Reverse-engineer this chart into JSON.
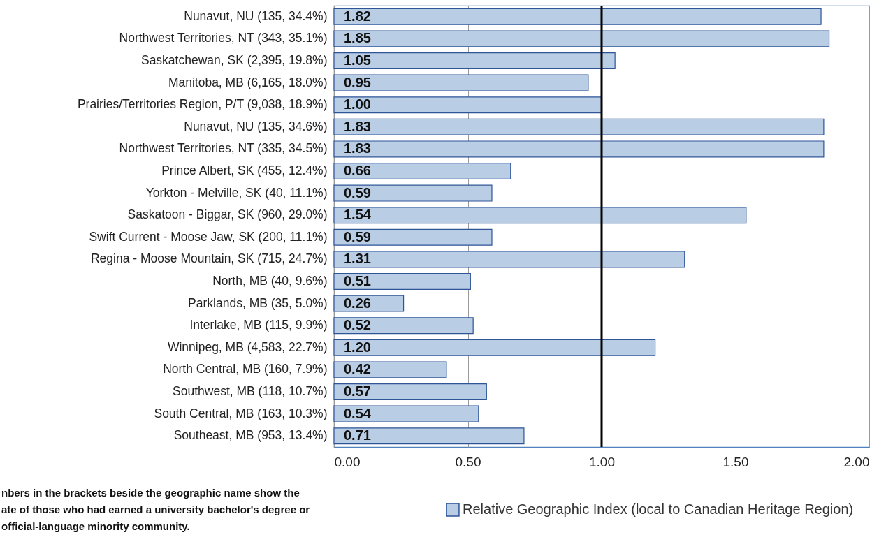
{
  "chart_data": {
    "type": "bar",
    "orientation": "horizontal",
    "categories": [
      "Nunavut, NU (135, 34.4%)",
      "Northwest Territories, NT (343, 35.1%)",
      "Saskatchewan, SK (2,395, 19.8%)",
      "Manitoba, MB (6,165, 18.0%)",
      "Prairies/Territories Region, P/T (9,038, 18.9%)",
      "Nunavut, NU (135, 34.6%)",
      "Northwest Territories, NT (335, 34.5%)",
      "Prince Albert, SK (455, 12.4%)",
      "Yorkton - Melville, SK (40, 11.1%)",
      "Saskatoon - Biggar, SK (960, 29.0%)",
      "Swift Current - Moose Jaw, SK (200, 11.1%)",
      "Regina - Moose Mountain, SK (715, 24.7%)",
      "North, MB (40, 9.6%)",
      "Parklands, MB (35, 5.0%)",
      "Interlake, MB (115, 9.9%)",
      "Winnipeg, MB (4,583, 22.7%)",
      "North Central, MB (160, 7.9%)",
      "Southwest, MB (118, 10.7%)",
      "South Central, MB (163, 10.3%)",
      "Southeast, MB (953, 13.4%)"
    ],
    "series": [
      {
        "name": "Relative Geographic Index (local to Canadian Heritage Region)",
        "color": "#b9cde5",
        "values": [
          1.82,
          1.85,
          1.05,
          0.95,
          1.0,
          1.83,
          1.83,
          0.66,
          0.59,
          1.54,
          0.59,
          1.31,
          0.51,
          0.26,
          0.52,
          1.2,
          0.42,
          0.57,
          0.54,
          0.71
        ]
      }
    ],
    "value_labels": [
      "1.82",
      "1.85",
      "1.05",
      "0.95",
      "1.00",
      "1.83",
      "1.83",
      "0.66",
      "0.59",
      "1.54",
      "0.59",
      "1.31",
      "0.51",
      "0.26",
      "0.52",
      "1.20",
      "0.42",
      "0.57",
      "0.54",
      "0.71"
    ],
    "xlim": [
      0,
      2
    ],
    "xticks": [
      {
        "value": 0,
        "label": "0.00"
      },
      {
        "value": 0.5,
        "label": "0.50"
      },
      {
        "value": 1,
        "label": "1.00"
      },
      {
        "value": 1.5,
        "label": "1.50"
      },
      {
        "value": 2,
        "label": "2.00"
      }
    ],
    "grid": "x",
    "legend": "bottom right",
    "ref_lines": [
      {
        "axis": "x",
        "value": 1,
        "color": "#000000"
      }
    ],
    "annotations": [
      "nbers in the brackets beside the geographic name show the",
      "ate of those who had earned a university bachelor's degree or",
      "official-language minority community."
    ]
  }
}
